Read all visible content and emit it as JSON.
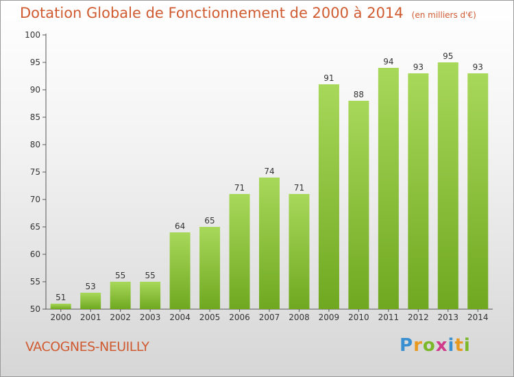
{
  "chart_data": {
    "type": "bar",
    "title": "Dotation Globale de Fonctionnement de 2000 à 2014",
    "unit_label": "(en milliers d'€)",
    "categories": [
      "2000",
      "2001",
      "2002",
      "2003",
      "2004",
      "2005",
      "2006",
      "2007",
      "2008",
      "2009",
      "2010",
      "2011",
      "2012",
      "2013",
      "2014"
    ],
    "values": [
      51,
      53,
      55,
      55,
      64,
      65,
      71,
      74,
      71,
      91,
      88,
      94,
      93,
      95,
      93
    ],
    "ylim": [
      50,
      100
    ],
    "yticks": [
      50,
      55,
      60,
      65,
      70,
      75,
      80,
      85,
      90,
      95,
      100
    ],
    "xlabel": "",
    "ylabel": "",
    "bar_color": "#8cc63f",
    "grid": false
  },
  "commune": "VACOGNES-NEUILLY",
  "brand": [
    "P",
    "r",
    "o",
    "x",
    "i",
    "t",
    "i"
  ]
}
